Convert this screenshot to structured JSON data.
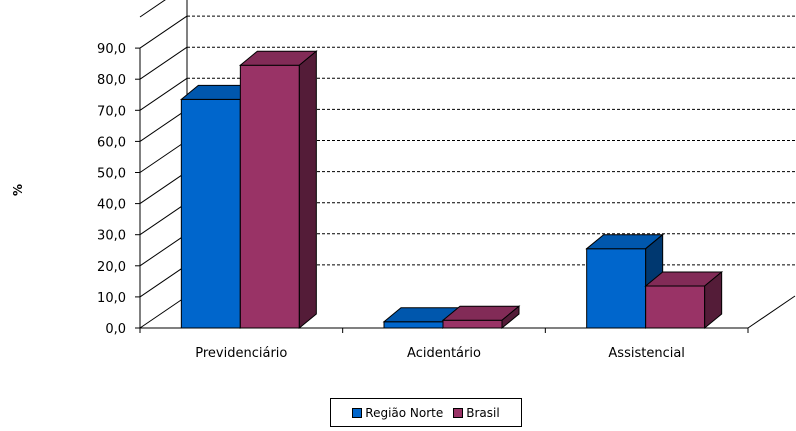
{
  "chart_data": {
    "type": "bar",
    "title": "",
    "xlabel": "",
    "ylabel": "%",
    "ylim": [
      0,
      90
    ],
    "yticks": [
      "0,0",
      "10,0",
      "20,0",
      "30,0",
      "40,0",
      "50,0",
      "60,0",
      "70,0",
      "80,0",
      "90,0"
    ],
    "categories": [
      "Previdenciário",
      "Acidentário",
      "Assistencial"
    ],
    "series": [
      {
        "name": "Região Norte",
        "values": [
          73.5,
          2.0,
          25.5
        ],
        "color": "#0066CC"
      },
      {
        "name": "Brasil",
        "values": [
          84.5,
          2.5,
          13.5
        ],
        "color": "#993366"
      }
    ],
    "grid": true,
    "legend_position": "bottom"
  }
}
